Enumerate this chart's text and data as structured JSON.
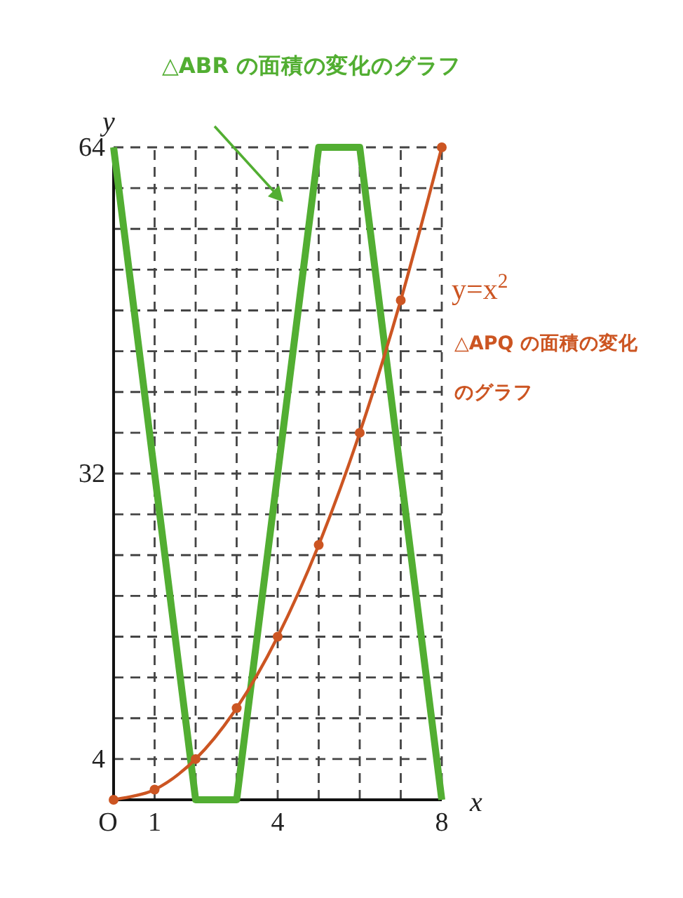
{
  "chart_data": {
    "type": "line",
    "xlabel": "x",
    "ylabel": "y",
    "xlim": [
      0,
      8
    ],
    "ylim": [
      0,
      64
    ],
    "xticks": [
      {
        "value": 0,
        "label": "O"
      },
      1,
      {
        "value": 2,
        "label": null
      },
      {
        "value": 3,
        "label": null
      },
      4,
      {
        "value": 5,
        "label": null
      },
      {
        "value": 6,
        "label": null
      },
      {
        "value": 7,
        "label": null
      },
      8
    ],
    "yticks": [
      {
        "value": 0,
        "label": null
      },
      4,
      {
        "value": 8,
        "label": null
      },
      {
        "value": 12,
        "label": null
      },
      {
        "value": 16,
        "label": null
      },
      {
        "value": 20,
        "label": null
      },
      {
        "value": 24,
        "label": null
      },
      {
        "value": 28,
        "label": null
      },
      32,
      {
        "value": 36,
        "label": null
      },
      {
        "value": 40,
        "label": null
      },
      {
        "value": 44,
        "label": null
      },
      {
        "value": 48,
        "label": null
      },
      {
        "value": 52,
        "label": null
      },
      {
        "value": 56,
        "label": null
      },
      {
        "value": 60,
        "label": null
      },
      64
    ],
    "grid": true,
    "annotations": [
      "y=x$^{2}$"
    ],
    "series": [
      {
        "name": "△ABR の面積の変化のグラフ",
        "color": "#52ae32",
        "x": [
          0,
          2,
          3,
          5,
          6,
          8
        ],
        "values": [
          64,
          0,
          0,
          64,
          64,
          0
        ],
        "marker": "none"
      },
      {
        "name": "△APQ の面積の変化のグラフ",
        "color": "#cc5522",
        "x": [
          0,
          1,
          2,
          3,
          4,
          5,
          6,
          7,
          8
        ],
        "values": [
          0,
          1,
          4,
          9,
          16,
          25,
          36,
          49,
          64
        ],
        "marker": "circle"
      }
    ]
  }
}
